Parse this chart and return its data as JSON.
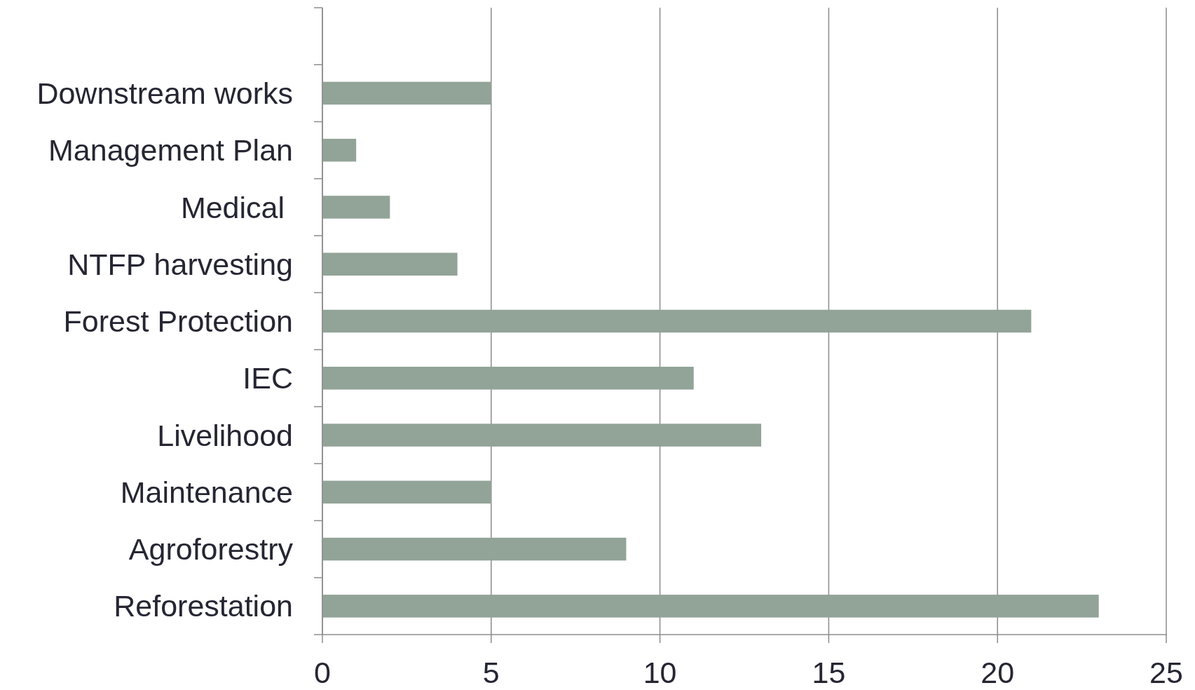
{
  "chart_data": {
    "type": "bar",
    "orientation": "horizontal",
    "categories": [
      null,
      "Downstream works",
      "Management Plan",
      "Medical ",
      "NTFP harvesting",
      "Forest Protection",
      "IEC",
      "Livelihood",
      "Maintenance",
      "Agroforestry",
      "Reforestation"
    ],
    "values": [
      null,
      5,
      1,
      2,
      4,
      21,
      11,
      13,
      5,
      9,
      23
    ],
    "color": "#92a398",
    "xlim": [
      0,
      25
    ],
    "xticks": [
      0,
      5,
      10,
      15,
      20,
      25
    ],
    "grid": "x"
  }
}
